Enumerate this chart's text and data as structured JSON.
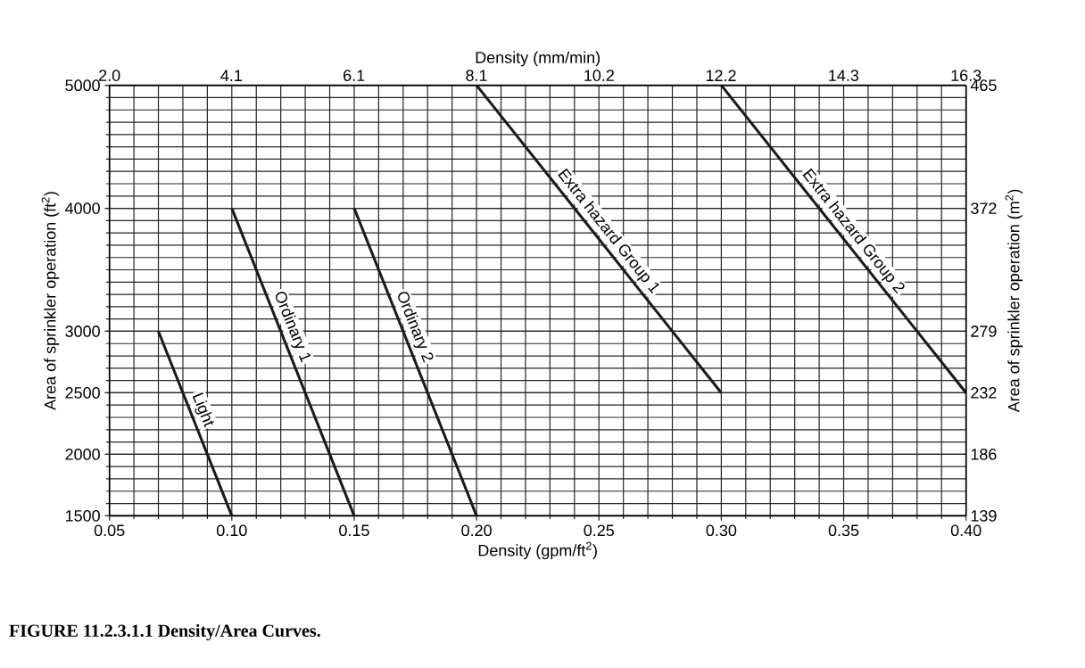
{
  "chart_data": {
    "type": "line",
    "title": "FIGURE 11.2.3.1.1  Density/Area Curves.",
    "xlabel": "Density (gpm/ft$^{2}$)",
    "ylabel": "Area of sprinkler operation (ft$^{2}$)",
    "y2label": "Area of sprinkler operation (m$^{2}$)",
    "x2label": "Density (mm/min)",
    "xlim": [
      0.05,
      0.4
    ],
    "xticks": [
      {
        "value": 0.05,
        "label": "0.05"
      },
      {
        "value": 0.1,
        "label": "0.10"
      },
      {
        "value": 0.15,
        "label": "0.15"
      },
      {
        "value": 0.2,
        "label": "0.20"
      },
      {
        "value": 0.25,
        "label": "0.25"
      },
      {
        "value": 0.3,
        "label": "0.30"
      },
      {
        "value": 0.35,
        "label": "0.35"
      },
      {
        "value": 0.4,
        "label": "0.40"
      }
    ],
    "ylim": [
      1500,
      5000
    ],
    "yticks": [
      1500,
      2000,
      2500,
      3000,
      4000,
      5000
    ],
    "x2lim": [
      2.04,
      16.3
    ],
    "x2ticks": [
      {
        "value": 2.04,
        "label": "2.0"
      },
      {
        "value": 4.07,
        "label": "4.1"
      },
      {
        "value": 6.11,
        "label": "6.1"
      },
      {
        "value": 8.15,
        "label": "8.1"
      },
      {
        "value": 10.19,
        "label": "10.2"
      },
      {
        "value": 12.22,
        "label": "12.2"
      },
      {
        "value": 14.26,
        "label": "14.3"
      },
      {
        "value": 16.3,
        "label": "16.3"
      }
    ],
    "y2lim": [
      139.35,
      464.5
    ],
    "y2ticks": [
      {
        "value": 139.35,
        "label": "139"
      },
      {
        "value": 185.8,
        "label": "186"
      },
      {
        "value": 232.25,
        "label": "232"
      },
      {
        "value": 278.7,
        "label": "279"
      },
      {
        "value": 371.6,
        "label": "372"
      },
      {
        "value": 464.5,
        "label": "465"
      }
    ],
    "grid": true,
    "series": [
      {
        "name": "Light",
        "color": "#1a1a1a",
        "x": [
          0.07,
          0.1
        ],
        "values": [
          3000,
          1500
        ]
      },
      {
        "name": "Ordinary 1",
        "color": "#1a1a1a",
        "x": [
          0.1,
          0.15
        ],
        "values": [
          4000,
          1500
        ]
      },
      {
        "name": "Ordinary 2",
        "color": "#1a1a1a",
        "x": [
          0.15,
          0.2
        ],
        "values": [
          4000,
          1500
        ]
      },
      {
        "name": "Extra hazard Group 1",
        "color": "#1a1a1a",
        "x": [
          0.2,
          0.3
        ],
        "values": [
          5000,
          2500
        ]
      },
      {
        "name": "Extra hazard Group 2",
        "color": "#1a1a1a",
        "x": [
          0.3,
          0.4
        ],
        "values": [
          5000,
          2500
        ]
      }
    ]
  }
}
